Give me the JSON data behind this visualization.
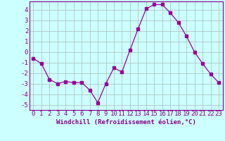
{
  "x": [
    0,
    1,
    2,
    3,
    4,
    5,
    6,
    7,
    8,
    9,
    10,
    11,
    12,
    13,
    14,
    15,
    16,
    17,
    18,
    19,
    20,
    21,
    22,
    23
  ],
  "y": [
    -0.6,
    -1.1,
    -2.6,
    -3.0,
    -2.8,
    -2.9,
    -2.9,
    -3.6,
    -4.8,
    -3.0,
    -1.5,
    -1.9,
    0.2,
    2.2,
    4.1,
    4.5,
    4.5,
    3.7,
    2.8,
    1.5,
    0.0,
    -1.1,
    -2.1,
    -2.9
  ],
  "line_color": "#990099",
  "marker": "s",
  "marker_size": 2.5,
  "bg_color": "#ccffff",
  "grid_color": "#aabbbb",
  "axis_color": "#880088",
  "xlabel": "Windchill (Refroidissement éolien,°C)",
  "ylim": [
    -5.5,
    4.8
  ],
  "xlim": [
    -0.5,
    23.5
  ],
  "yticks": [
    -5,
    -4,
    -3,
    -2,
    -1,
    0,
    1,
    2,
    3,
    4
  ],
  "xticks": [
    0,
    1,
    2,
    3,
    4,
    5,
    6,
    7,
    8,
    9,
    10,
    11,
    12,
    13,
    14,
    15,
    16,
    17,
    18,
    19,
    20,
    21,
    22,
    23
  ],
  "font_size": 6.5
}
